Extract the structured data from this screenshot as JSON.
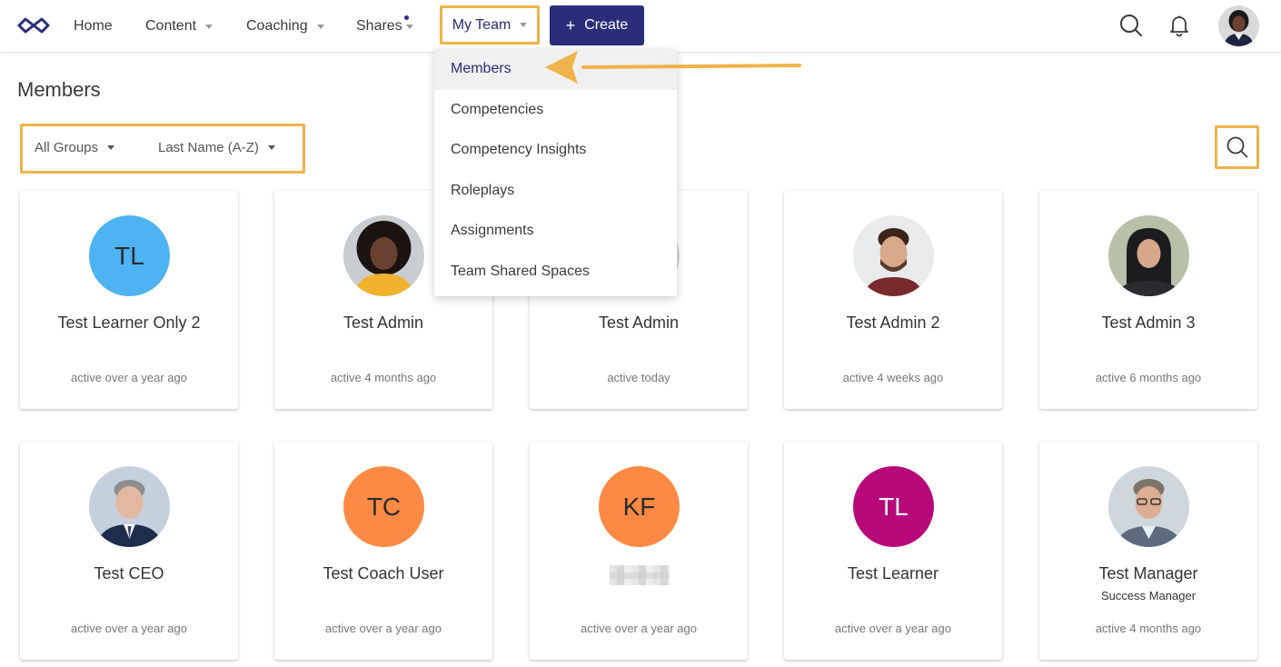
{
  "nav": {
    "home": "Home",
    "content": "Content",
    "coaching": "Coaching",
    "shares": "Shares",
    "my_team": "My Team",
    "create": "Create",
    "create_icon": "+"
  },
  "page": {
    "title": "Members",
    "filters": {
      "group": "All Groups",
      "sort": "Last Name (A-Z)"
    }
  },
  "dropdown": {
    "items": [
      "Members",
      "Competencies",
      "Competency Insights",
      "Roleplays",
      "Assignments",
      "Team Shared Spaces"
    ],
    "active_index": 0
  },
  "members": [
    {
      "name": "Test Learner Only 2",
      "status": "active over a year ago",
      "avatar": "initials",
      "initials": "TL",
      "avatar_color": "#4db3f2"
    },
    {
      "name": "Test Admin",
      "status": "active 4 months ago",
      "avatar": "photo-woman-curly"
    },
    {
      "name": "Test Admin",
      "status": "active today",
      "avatar": "photo-hidden"
    },
    {
      "name": "Test Admin 2",
      "status": "active 4 weeks ago",
      "avatar": "photo-man-beard"
    },
    {
      "name": "Test Admin 3",
      "status": "active 6 months ago",
      "avatar": "photo-woman-hijab"
    },
    {
      "name": "Test CEO",
      "status": "active over a year ago",
      "avatar": "photo-man-suit"
    },
    {
      "name": "Test Coach User",
      "status": "active over a year ago",
      "avatar": "initials",
      "initials": "TC",
      "avatar_color": "#fd8a44"
    },
    {
      "name": "",
      "status": "active over a year ago",
      "avatar": "initials",
      "initials": "KF",
      "avatar_color": "#fd8a44",
      "name_redacted": true
    },
    {
      "name": "Test Learner",
      "status": "active over a year ago",
      "avatar": "initials",
      "initials": "TL",
      "avatar_color": "#b8097a"
    },
    {
      "name": "Test Manager",
      "subtitle": "Success Manager",
      "status": "active 4 months ago",
      "avatar": "photo-man-glasses"
    }
  ],
  "colors": {
    "brand": "#2a2e7a",
    "highlight": "#f0b24a",
    "dropdown_active_bg": "#f0f0f0"
  }
}
